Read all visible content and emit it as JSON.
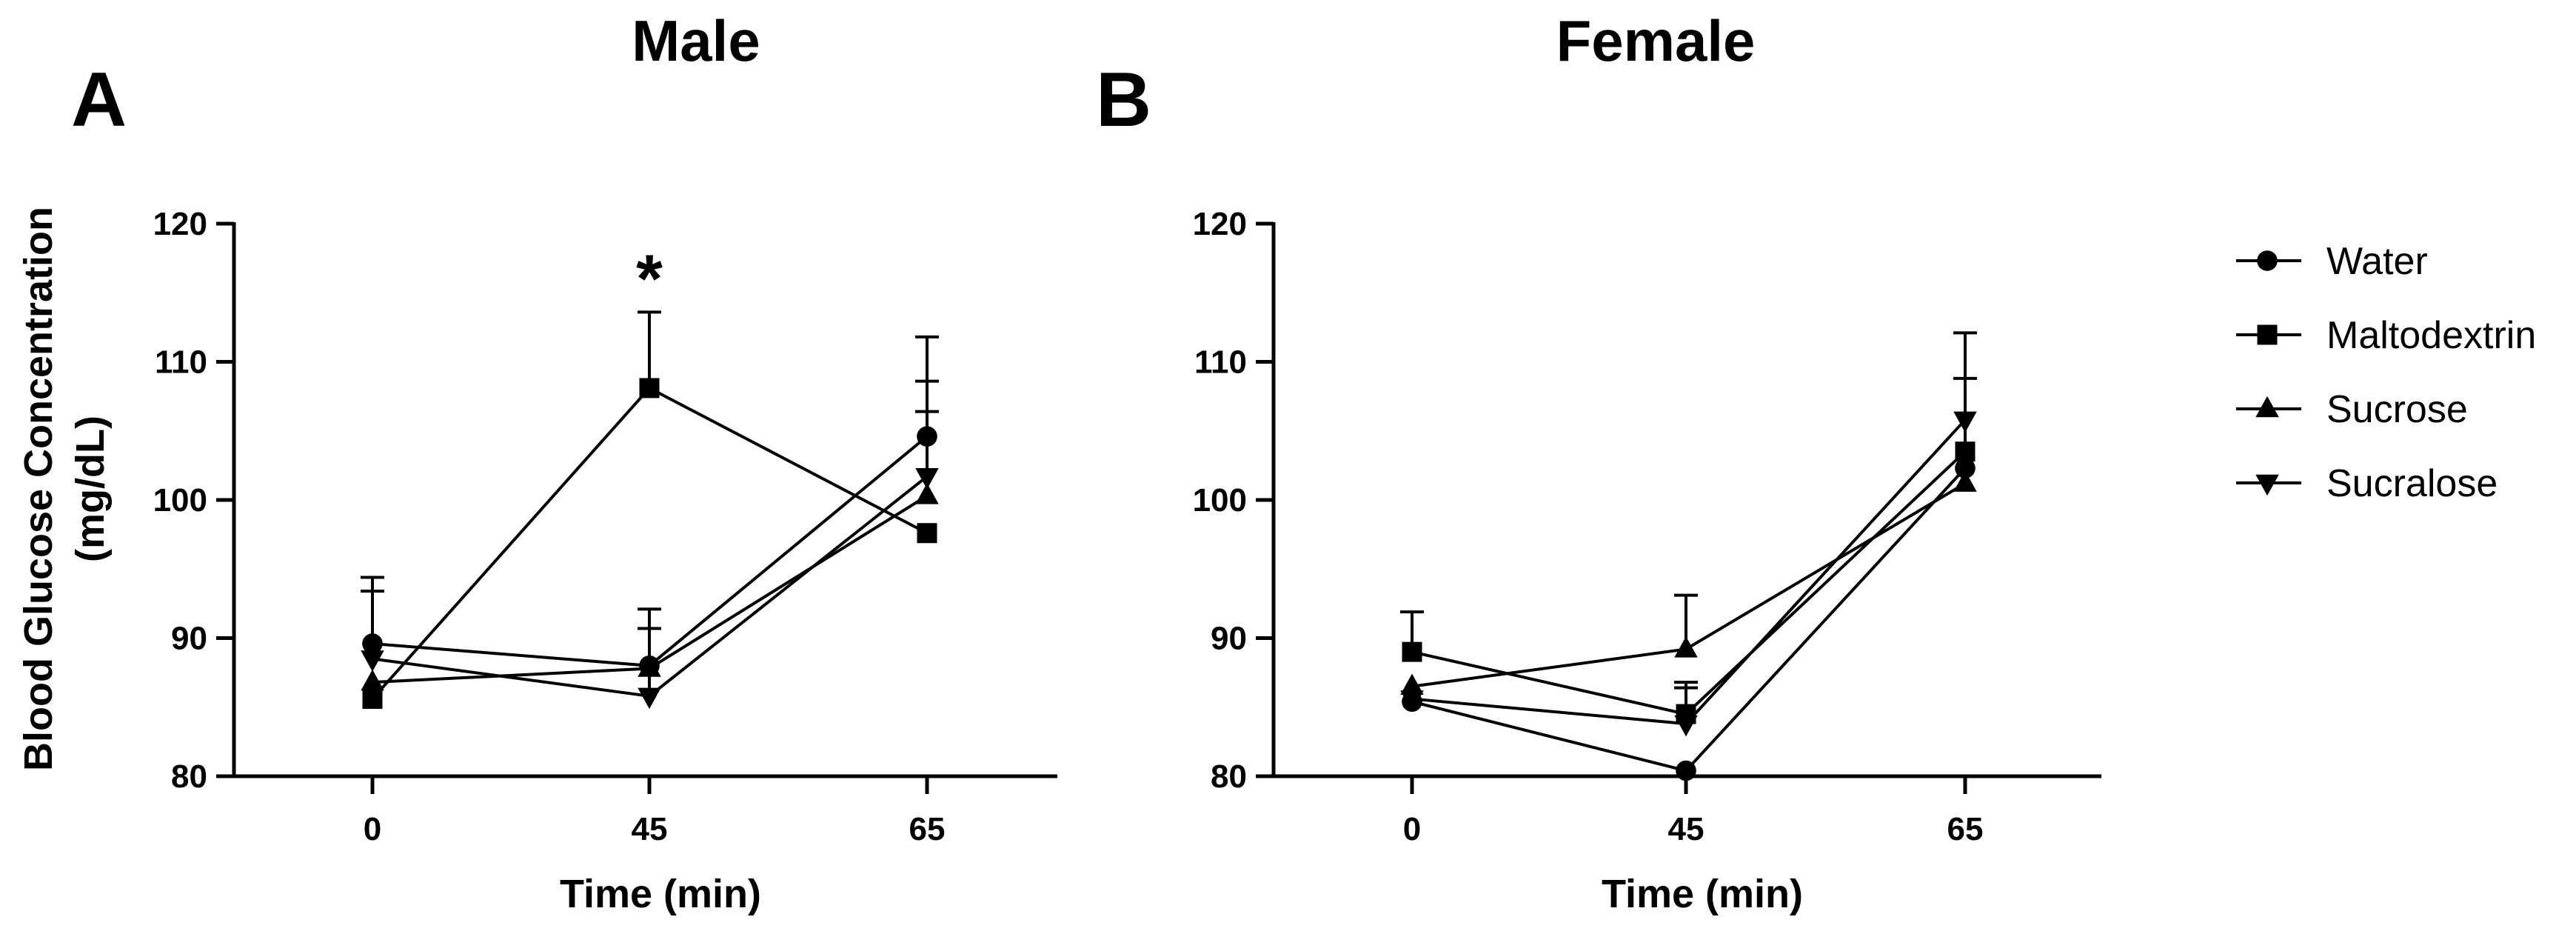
{
  "chart_data": [
    {
      "type": "line",
      "panel_letter": "A",
      "title": "Male",
      "xlabel": "Time (min)",
      "ylabel": "Blood Glucose Concentration (mg/dL)",
      "ylabel_lines": [
        "Blood Glucose Concentration",
        "(mg/dL)"
      ],
      "x": [
        0,
        45,
        65
      ],
      "xticks": [
        "0",
        "45",
        "65"
      ],
      "ylim": [
        80,
        120
      ],
      "yticks": [
        80,
        90,
        100,
        110,
        120
      ],
      "ytick_labels": [
        "80",
        "90",
        "100",
        "110",
        "120"
      ],
      "grid": false,
      "series": [
        {
          "name": "Water",
          "marker": "circle",
          "values": [
            89.6,
            88.0,
            104.6
          ],
          "errors": [
            4.8,
            4.1,
            7.2
          ]
        },
        {
          "name": "Maltodextrin",
          "marker": "square",
          "values": [
            85.6,
            108.1,
            97.6
          ],
          "errors": [
            0,
            5.5,
            0
          ]
        },
        {
          "name": "Sucrose",
          "marker": "triangle-up",
          "values": [
            86.8,
            87.8,
            100.3
          ],
          "errors": [
            0,
            0,
            6.1
          ]
        },
        {
          "name": "Sucralose",
          "marker": "triangle-down",
          "values": [
            88.5,
            85.8,
            101.7
          ],
          "errors": [
            4.9,
            4.9,
            6.9
          ]
        }
      ],
      "annotations": [
        {
          "text": "*",
          "x": 45
        }
      ]
    },
    {
      "type": "line",
      "panel_letter": "B",
      "title": "Female",
      "xlabel": "Time (min)",
      "ylabel": "",
      "x": [
        0,
        45,
        65
      ],
      "xticks": [
        "0",
        "45",
        "65"
      ],
      "ylim": [
        80,
        120
      ],
      "yticks": [
        80,
        90,
        100,
        110,
        120
      ],
      "ytick_labels": [
        "80",
        "90",
        "100",
        "110",
        "120"
      ],
      "grid": false,
      "series": [
        {
          "name": "Water",
          "marker": "circle",
          "values": [
            85.4,
            80.4,
            102.3
          ],
          "errors": [
            0,
            0,
            0
          ]
        },
        {
          "name": "Maltodextrin",
          "marker": "square",
          "values": [
            89.0,
            84.5,
            103.5
          ],
          "errors": [
            2.9,
            2.3,
            5.3
          ]
        },
        {
          "name": "Sucrose",
          "marker": "triangle-up",
          "values": [
            86.5,
            89.2,
            101.2
          ],
          "errors": [
            0,
            3.9,
            0
          ]
        },
        {
          "name": "Sucralose",
          "marker": "triangle-down",
          "values": [
            85.6,
            83.8,
            105.8
          ],
          "errors": [
            0,
            2.6,
            6.3
          ]
        }
      ],
      "annotations": []
    }
  ],
  "legend": {
    "placement": "right",
    "entries": [
      {
        "label": "Water",
        "marker": "circle"
      },
      {
        "label": "Maltodextrin",
        "marker": "square"
      },
      {
        "label": "Sucrose",
        "marker": "triangle-up"
      },
      {
        "label": "Sucralose",
        "marker": "triangle-down"
      }
    ]
  },
  "colors": {
    "ink": "#000000",
    "background": "#ffffff"
  }
}
